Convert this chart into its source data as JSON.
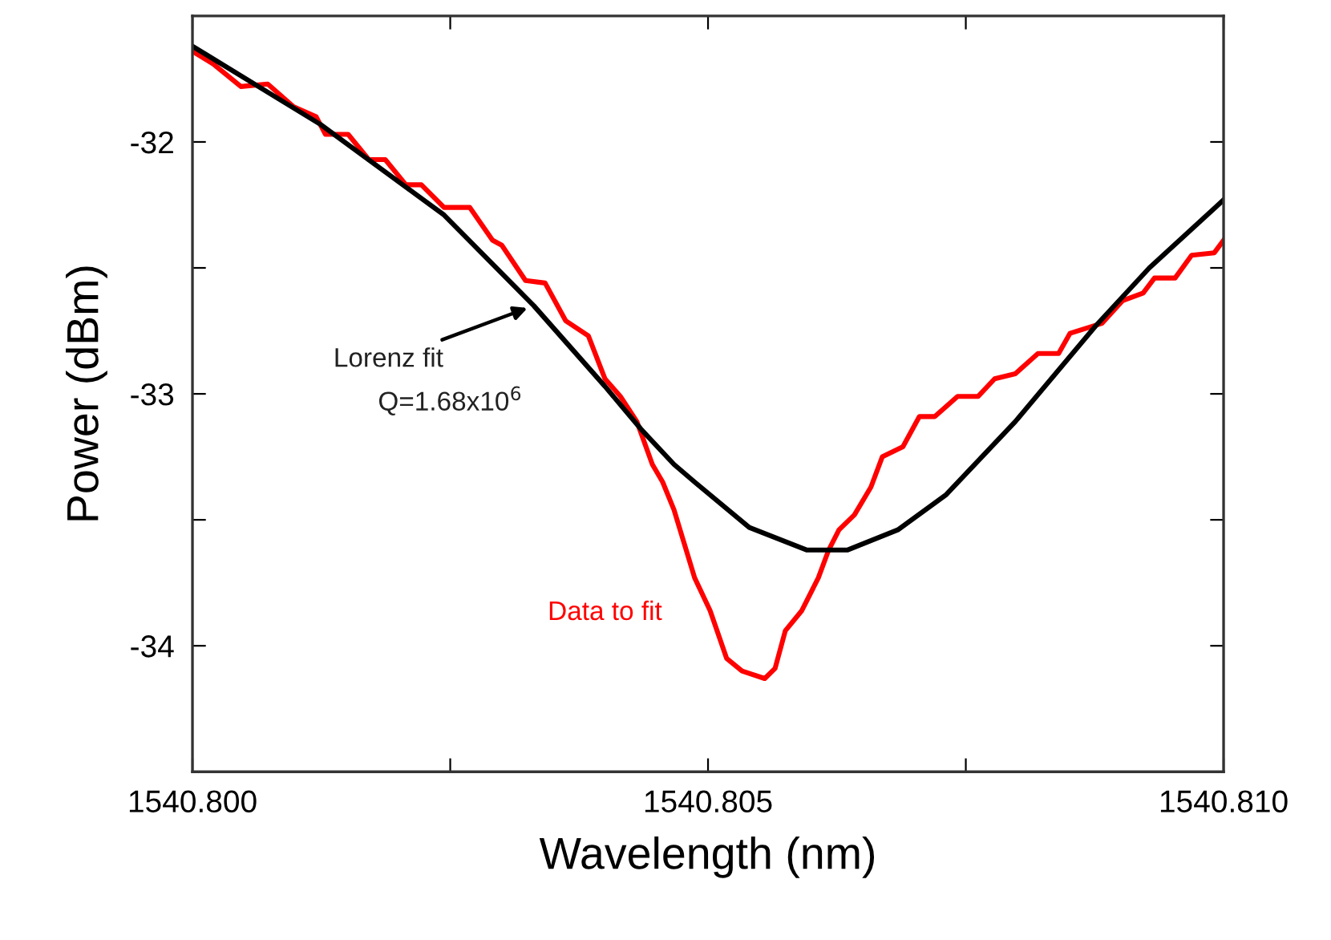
{
  "chart_data": {
    "type": "line",
    "xlabel": "Wavelength (nm)",
    "ylabel": "Power (dBm)",
    "xlim": [
      1540.8,
      1540.81
    ],
    "ylim": [
      -34.5,
      -31.5
    ],
    "xticks": [
      {
        "value": 1540.8,
        "label": "1540.800"
      },
      {
        "value": 1540.8025,
        "label": null
      },
      {
        "value": 1540.805,
        "label": "1540.805"
      },
      {
        "value": 1540.8075,
        "label": null
      },
      {
        "value": 1540.81,
        "label": "1540.810"
      }
    ],
    "yticks": [
      -32,
      {
        "value": -32.5,
        "label": null
      },
      -33,
      {
        "value": -33.5,
        "label": null
      },
      -34
    ],
    "grid": false,
    "legend": false,
    "marker": "none",
    "line_style": "solid",
    "series": [
      {
        "name": "Data to fit",
        "color": "#ff0000",
        "x": [
          1540.8,
          1540.8002,
          1540.80047,
          1540.80073,
          1540.80098,
          1540.8012,
          1540.80129,
          1540.80151,
          1540.80171,
          1540.80187,
          1540.80207,
          1540.80222,
          1540.80244,
          1540.80269,
          1540.80291,
          1540.803,
          1540.80323,
          1540.80342,
          1540.80362,
          1540.80384,
          1540.804,
          1540.80415,
          1540.80431,
          1540.80446,
          1540.80456,
          1540.80467,
          1540.80487,
          1540.80502,
          1540.80518,
          1540.80533,
          1540.80555,
          1540.80565,
          1540.80575,
          1540.80591,
          1540.80607,
          1540.80617,
          1540.80627,
          1540.80642,
          1540.80658,
          1540.80669,
          1540.80689,
          1540.80705,
          1540.8072,
          1540.80742,
          1540.80762,
          1540.80778,
          1540.80798,
          1540.8082,
          1540.8084,
          1540.80851,
          1540.80882,
          1540.80902,
          1540.80922,
          1540.80933,
          1540.80953,
          1540.80969,
          1540.80991,
          1540.81
        ],
        "values": [
          -31.64,
          -31.69,
          -31.78,
          -31.77,
          -31.86,
          -31.9,
          -31.97,
          -31.97,
          -32.07,
          -32.07,
          -32.17,
          -32.17,
          -32.26,
          -32.26,
          -32.39,
          -32.41,
          -32.55,
          -32.56,
          -32.71,
          -32.77,
          -32.94,
          -33.01,
          -33.11,
          -33.28,
          -33.35,
          -33.46,
          -33.73,
          -33.86,
          -34.05,
          -34.1,
          -34.13,
          -34.09,
          -33.94,
          -33.86,
          -33.73,
          -33.62,
          -33.54,
          -33.48,
          -33.37,
          -33.25,
          -33.21,
          -33.09,
          -33.09,
          -33.01,
          -33.01,
          -32.94,
          -32.92,
          -32.84,
          -32.84,
          -32.76,
          -32.72,
          -32.63,
          -32.6,
          -32.54,
          -32.54,
          -32.45,
          -32.44,
          -32.39
        ]
      },
      {
        "name": "Lorenz fit",
        "color": "#000000",
        "x": [
          1540.8,
          1540.80124,
          1540.80244,
          1540.80331,
          1540.804,
          1540.80435,
          1540.80467,
          1540.80487,
          1540.8054,
          1540.80596,
          1540.80635,
          1540.80684,
          1540.80731,
          1540.80798,
          1540.80876,
          1540.80928,
          1540.81
        ],
        "values": [
          -31.62,
          -31.93,
          -32.29,
          -32.65,
          -32.97,
          -33.14,
          -33.28,
          -33.35,
          -33.53,
          -33.62,
          -33.62,
          -33.54,
          -33.4,
          -33.11,
          -32.73,
          -32.5,
          -32.23
        ]
      }
    ],
    "annotations": [
      "Q=1.68x10$^{6}$"
    ]
  }
}
